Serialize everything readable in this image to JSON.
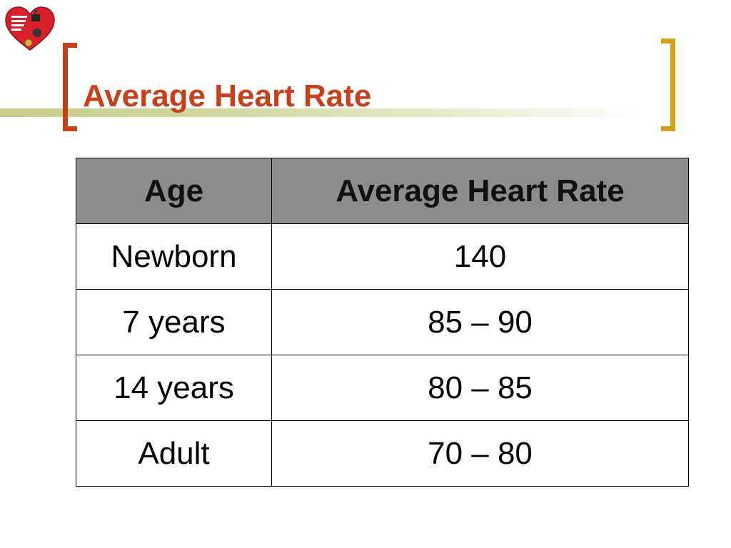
{
  "slide": {
    "title": "Average Heart Rate"
  },
  "table": {
    "headers": [
      "Age",
      "Average Heart Rate"
    ],
    "rows": [
      [
        "Newborn",
        "140"
      ],
      [
        "7 years",
        "85 – 90"
      ],
      [
        "14 years",
        "80 – 85"
      ],
      [
        "Adult",
        "70 – 80"
      ]
    ]
  },
  "colors": {
    "title": "#c8401a",
    "bracket_left": "#c8401a",
    "bracket_right": "#d6a016",
    "header_bg": "#8c8c8c"
  },
  "icons": {
    "logo": "heart-logo-icon"
  }
}
